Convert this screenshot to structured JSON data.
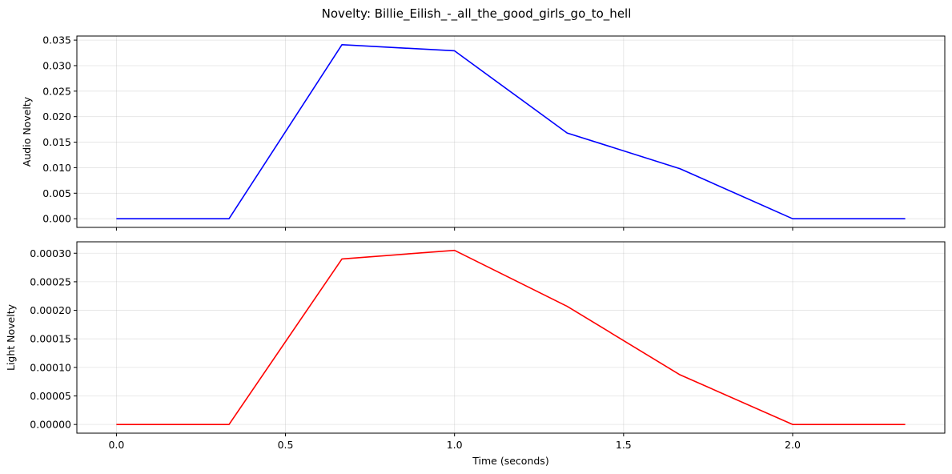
{
  "chart_data": {
    "title": "Novelty: Billie_Eilish_-_all_the_good_girls_go_to_hell",
    "xlabel": "Time (seconds)",
    "xlim": [
      -0.117,
      2.45
    ],
    "xticks": [
      0.0,
      0.5,
      1.0,
      1.5,
      2.0
    ],
    "xtick_labels": [
      "0.0",
      "0.5",
      "1.0",
      "1.5",
      "2.0"
    ],
    "grid": true,
    "subplots": [
      {
        "type": "line",
        "ylabel": "Audio Novelty",
        "color": "#0000ff",
        "ylim": [
          -0.0017,
          0.0358
        ],
        "yticks": [
          0.0,
          0.005,
          0.01,
          0.015,
          0.02,
          0.025,
          0.03,
          0.035
        ],
        "ytick_labels": [
          "0.000",
          "0.005",
          "0.010",
          "0.015",
          "0.020",
          "0.025",
          "0.030",
          "0.035"
        ],
        "x": [
          0.0,
          0.333,
          0.667,
          1.0,
          1.333,
          1.667,
          2.0,
          2.333
        ],
        "y": [
          0.0,
          0.0,
          0.0341,
          0.0329,
          0.0168,
          0.0098,
          0.0,
          0.0
        ]
      },
      {
        "type": "line",
        "ylabel": "Light Novelty",
        "color": "#ff0000",
        "ylim": [
          -1.52e-05,
          0.00032
        ],
        "yticks": [
          0.0,
          5e-05,
          0.0001,
          0.00015,
          0.0002,
          0.00025,
          0.0003
        ],
        "ytick_labels": [
          "0.00000",
          "0.00005",
          "0.00010",
          "0.00015",
          "0.00020",
          "0.00025",
          "0.00030"
        ],
        "x": [
          0.0,
          0.333,
          0.667,
          1.0,
          1.333,
          1.667,
          2.0,
          2.333
        ],
        "y": [
          0.0,
          0.0,
          0.00029,
          0.000305,
          0.000207,
          8.7e-05,
          0.0,
          0.0
        ]
      }
    ]
  }
}
